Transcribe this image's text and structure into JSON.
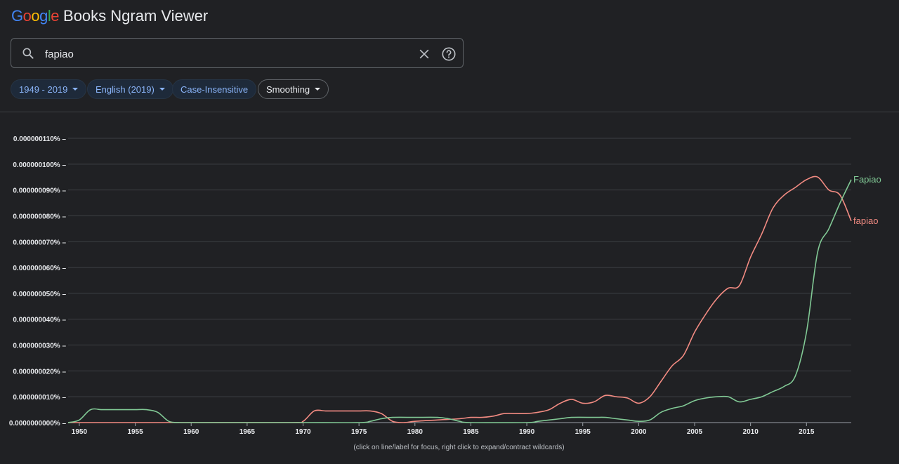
{
  "header": {
    "logo_text": "Google",
    "title": "Books Ngram Viewer",
    "logo_colors": [
      "#4285f4",
      "#ea4335",
      "#fbbc05",
      "#4285f4",
      "#34a853",
      "#ea4335"
    ]
  },
  "search": {
    "value": "fapiao",
    "icon": "search-icon",
    "clear_icon": "close-icon",
    "help_icon": "help-icon"
  },
  "filters": {
    "years": "1949 - 2019",
    "corpus": "English (2019)",
    "case": "Case-Insensitive",
    "smoothing": "Smoothing"
  },
  "footnote": "(click on line/label for focus, right click to expand/contract wildcards)",
  "chart_data": {
    "type": "line",
    "xlim": [
      1949,
      2019
    ],
    "ylim": [
      0,
      1.1e-07
    ],
    "x_ticks": [
      1950,
      1955,
      1960,
      1965,
      1970,
      1975,
      1980,
      1985,
      1990,
      1995,
      2000,
      2005,
      2010,
      2015
    ],
    "y_ticks": [
      "0.0000000000%",
      "0.000000010%",
      "0.000000020%",
      "0.000000030%",
      "0.000000040%",
      "0.000000050%",
      "0.000000060%",
      "0.000000070%",
      "0.000000080%",
      "0.000000090%",
      "0.000000100%",
      "0.000000110%"
    ],
    "grid": true,
    "legend": "inline labels at line ends",
    "series": [
      {
        "name": "Fapiao",
        "color": "#81c995",
        "points": [
          [
            1949,
            0
          ],
          [
            1950,
            1e-09
          ],
          [
            1951,
            5e-09
          ],
          [
            1952,
            5e-09
          ],
          [
            1953,
            5e-09
          ],
          [
            1954,
            5e-09
          ],
          [
            1955,
            5e-09
          ],
          [
            1956,
            5e-09
          ],
          [
            1957,
            4e-09
          ],
          [
            1958,
            5e-10
          ],
          [
            1959,
            0
          ],
          [
            1960,
            0
          ],
          [
            1965,
            0
          ],
          [
            1970,
            0
          ],
          [
            1975,
            0
          ],
          [
            1976,
            5e-10
          ],
          [
            1977,
            1.5e-09
          ],
          [
            1978,
            2e-09
          ],
          [
            1980,
            2e-09
          ],
          [
            1982,
            2e-09
          ],
          [
            1983,
            1.5e-09
          ],
          [
            1984,
            5e-10
          ],
          [
            1985,
            0
          ],
          [
            1990,
            0
          ],
          [
            1991,
            5e-10
          ],
          [
            1993,
            1.5e-09
          ],
          [
            1994,
            2e-09
          ],
          [
            1996,
            2e-09
          ],
          [
            1997,
            2e-09
          ],
          [
            1998,
            1.5e-09
          ],
          [
            1999,
            1e-09
          ],
          [
            2000,
            5e-10
          ],
          [
            2001,
            1e-09
          ],
          [
            2002,
            4e-09
          ],
          [
            2003,
            5.5e-09
          ],
          [
            2004,
            6.5e-09
          ],
          [
            2005,
            8.5e-09
          ],
          [
            2006,
            9.5e-09
          ],
          [
            2007,
            1e-08
          ],
          [
            2008,
            1e-08
          ],
          [
            2009,
            8e-09
          ],
          [
            2010,
            9e-09
          ],
          [
            2011,
            1e-08
          ],
          [
            2012,
            1.2e-08
          ],
          [
            2013,
            1.4e-08
          ],
          [
            2014,
            1.8e-08
          ],
          [
            2015,
            3.5e-08
          ],
          [
            2016,
            6.6e-08
          ],
          [
            2017,
            7.5e-08
          ],
          [
            2018,
            8.5e-08
          ],
          [
            2019,
            9.4e-08
          ]
        ]
      },
      {
        "name": "fapiao",
        "color": "#f28b82",
        "points": [
          [
            1949,
            0
          ],
          [
            1960,
            0
          ],
          [
            1969,
            0
          ],
          [
            1970,
            5e-10
          ],
          [
            1971,
            4.5e-09
          ],
          [
            1972,
            4.5e-09
          ],
          [
            1973,
            4.5e-09
          ],
          [
            1974,
            4.5e-09
          ],
          [
            1975,
            4.5e-09
          ],
          [
            1976,
            4.5e-09
          ],
          [
            1977,
            3.5e-09
          ],
          [
            1978,
            5e-10
          ],
          [
            1979,
            0
          ],
          [
            1980,
            5e-10
          ],
          [
            1982,
            1e-09
          ],
          [
            1984,
            1.5e-09
          ],
          [
            1985,
            2e-09
          ],
          [
            1986,
            2e-09
          ],
          [
            1987,
            2.5e-09
          ],
          [
            1988,
            3.5e-09
          ],
          [
            1989,
            3.5e-09
          ],
          [
            1990,
            3.5e-09
          ],
          [
            1991,
            4e-09
          ],
          [
            1992,
            5e-09
          ],
          [
            1993,
            7.5e-09
          ],
          [
            1994,
            9e-09
          ],
          [
            1995,
            7.5e-09
          ],
          [
            1996,
            8e-09
          ],
          [
            1997,
            1.05e-08
          ],
          [
            1998,
            1e-08
          ],
          [
            1999,
            9.5e-09
          ],
          [
            2000,
            7.5e-09
          ],
          [
            2001,
            1e-08
          ],
          [
            2002,
            1.6e-08
          ],
          [
            2003,
            2.2e-08
          ],
          [
            2004,
            2.6e-08
          ],
          [
            2005,
            3.5e-08
          ],
          [
            2006,
            4.2e-08
          ],
          [
            2007,
            4.8e-08
          ],
          [
            2008,
            5.2e-08
          ],
          [
            2009,
            5.3e-08
          ],
          [
            2010,
            6.4e-08
          ],
          [
            2011,
            7.3e-08
          ],
          [
            2012,
            8.3e-08
          ],
          [
            2013,
            8.8e-08
          ],
          [
            2014,
            9.1e-08
          ],
          [
            2015,
            9.4e-08
          ],
          [
            2016,
            9.5e-08
          ],
          [
            2017,
            9e-08
          ],
          [
            2018,
            8.8e-08
          ],
          [
            2019,
            7.8e-08
          ]
        ]
      }
    ]
  }
}
